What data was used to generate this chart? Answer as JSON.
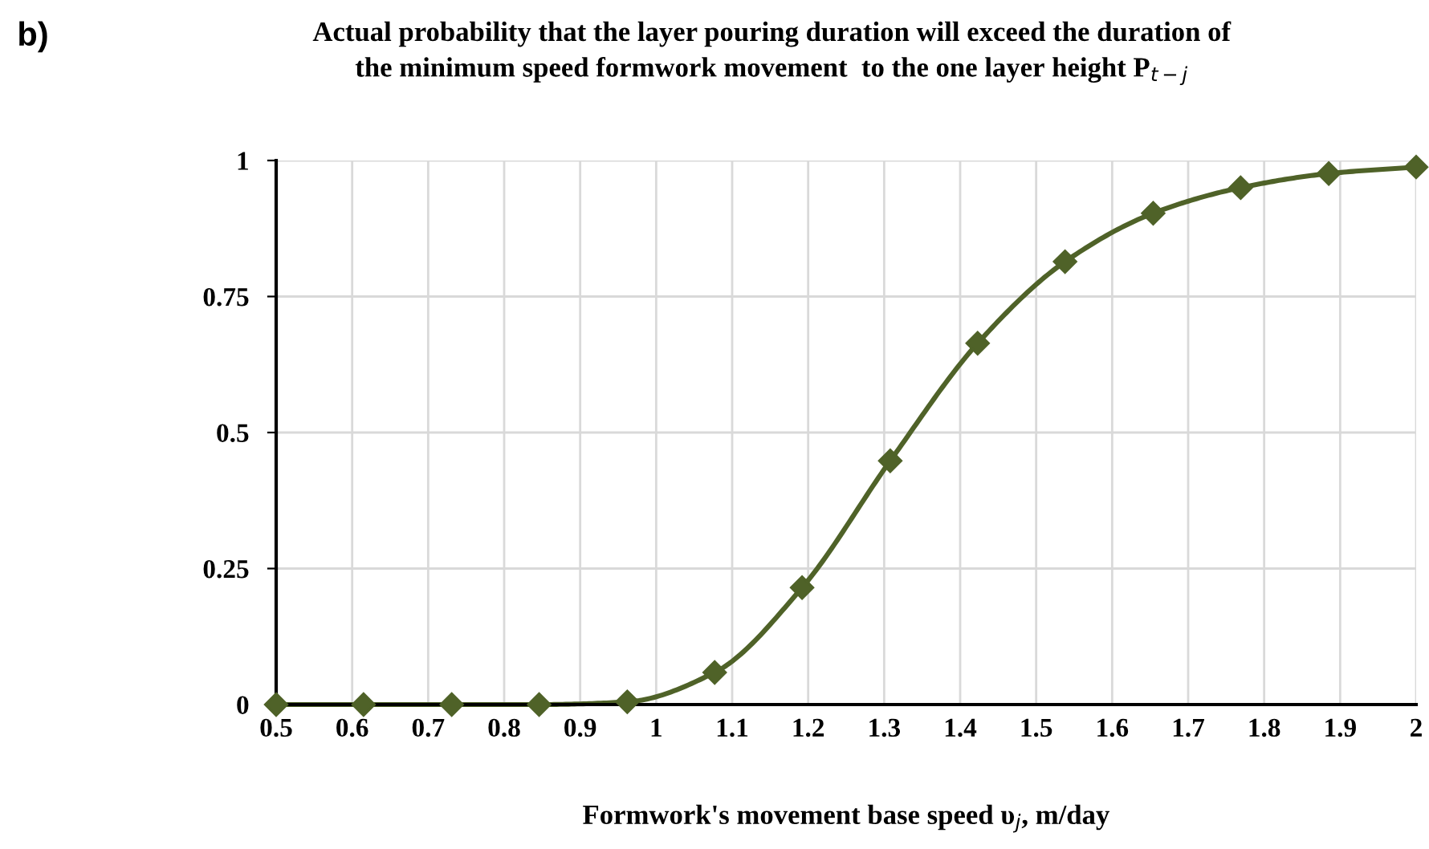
{
  "chart_data": {
    "type": "line",
    "title": "Actual probability that the layer pouring duration will exceed the duration of\nthe minimum speed formwork movement  to the one layer height P$_{t−j}$",
    "xlabel": "Formwork's movement base speed υ$_{j}$, m/day",
    "annotations": [
      "b)"
    ],
    "x": [
      0.5,
      0.615,
      0.731,
      0.846,
      0.962,
      1.077,
      1.192,
      1.308,
      1.423,
      1.538,
      1.654,
      1.769,
      1.885,
      2.0
    ],
    "series": [
      {
        "color": "#4f6228",
        "values": [
          0,
          0,
          0,
          0,
          0.005,
          0.059,
          0.215,
          0.448,
          0.664,
          0.814,
          0.903,
          0.95,
          0.976,
          0.988
        ]
      }
    ],
    "xlim": [
      0.5,
      2
    ],
    "xticks": [
      0.5,
      0.6,
      0.7,
      0.8,
      0.9,
      1,
      1.1,
      1.2,
      1.3,
      1.4,
      1.5,
      1.6,
      1.7,
      1.8,
      1.9,
      2
    ],
    "ylim": [
      0,
      1
    ],
    "yticks": [
      0,
      0.25,
      0.5,
      0.75,
      1
    ],
    "grid": true,
    "legend": false,
    "marker": "diamond",
    "line_style": "solid"
  }
}
